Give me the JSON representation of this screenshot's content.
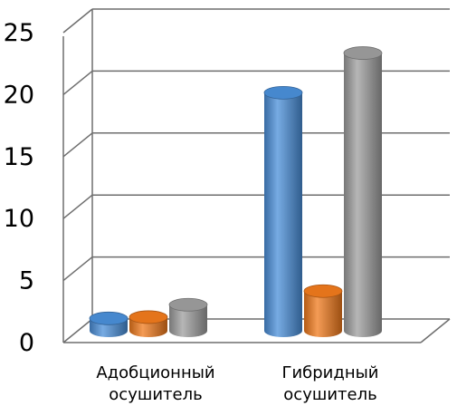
{
  "chart_data": {
    "type": "bar",
    "title": "",
    "xlabel": "",
    "ylabel": "",
    "ylim": [
      0,
      25
    ],
    "yticks": [
      0,
      5,
      10,
      15,
      20,
      25
    ],
    "grid": true,
    "style": "3d-cylinder",
    "categories": [
      [
        "Адобционный",
        "осушитель"
      ],
      [
        "Гибридный",
        "осушитель"
      ]
    ],
    "series": [
      {
        "values": [
          1.0,
          19.2
        ],
        "color": "#4a8fd9"
      },
      {
        "values": [
          1.1,
          3.2
        ],
        "color": "#f07a1c"
      },
      {
        "values": [
          2.1,
          22.4
        ],
        "color": "#9e9e9e"
      }
    ]
  }
}
